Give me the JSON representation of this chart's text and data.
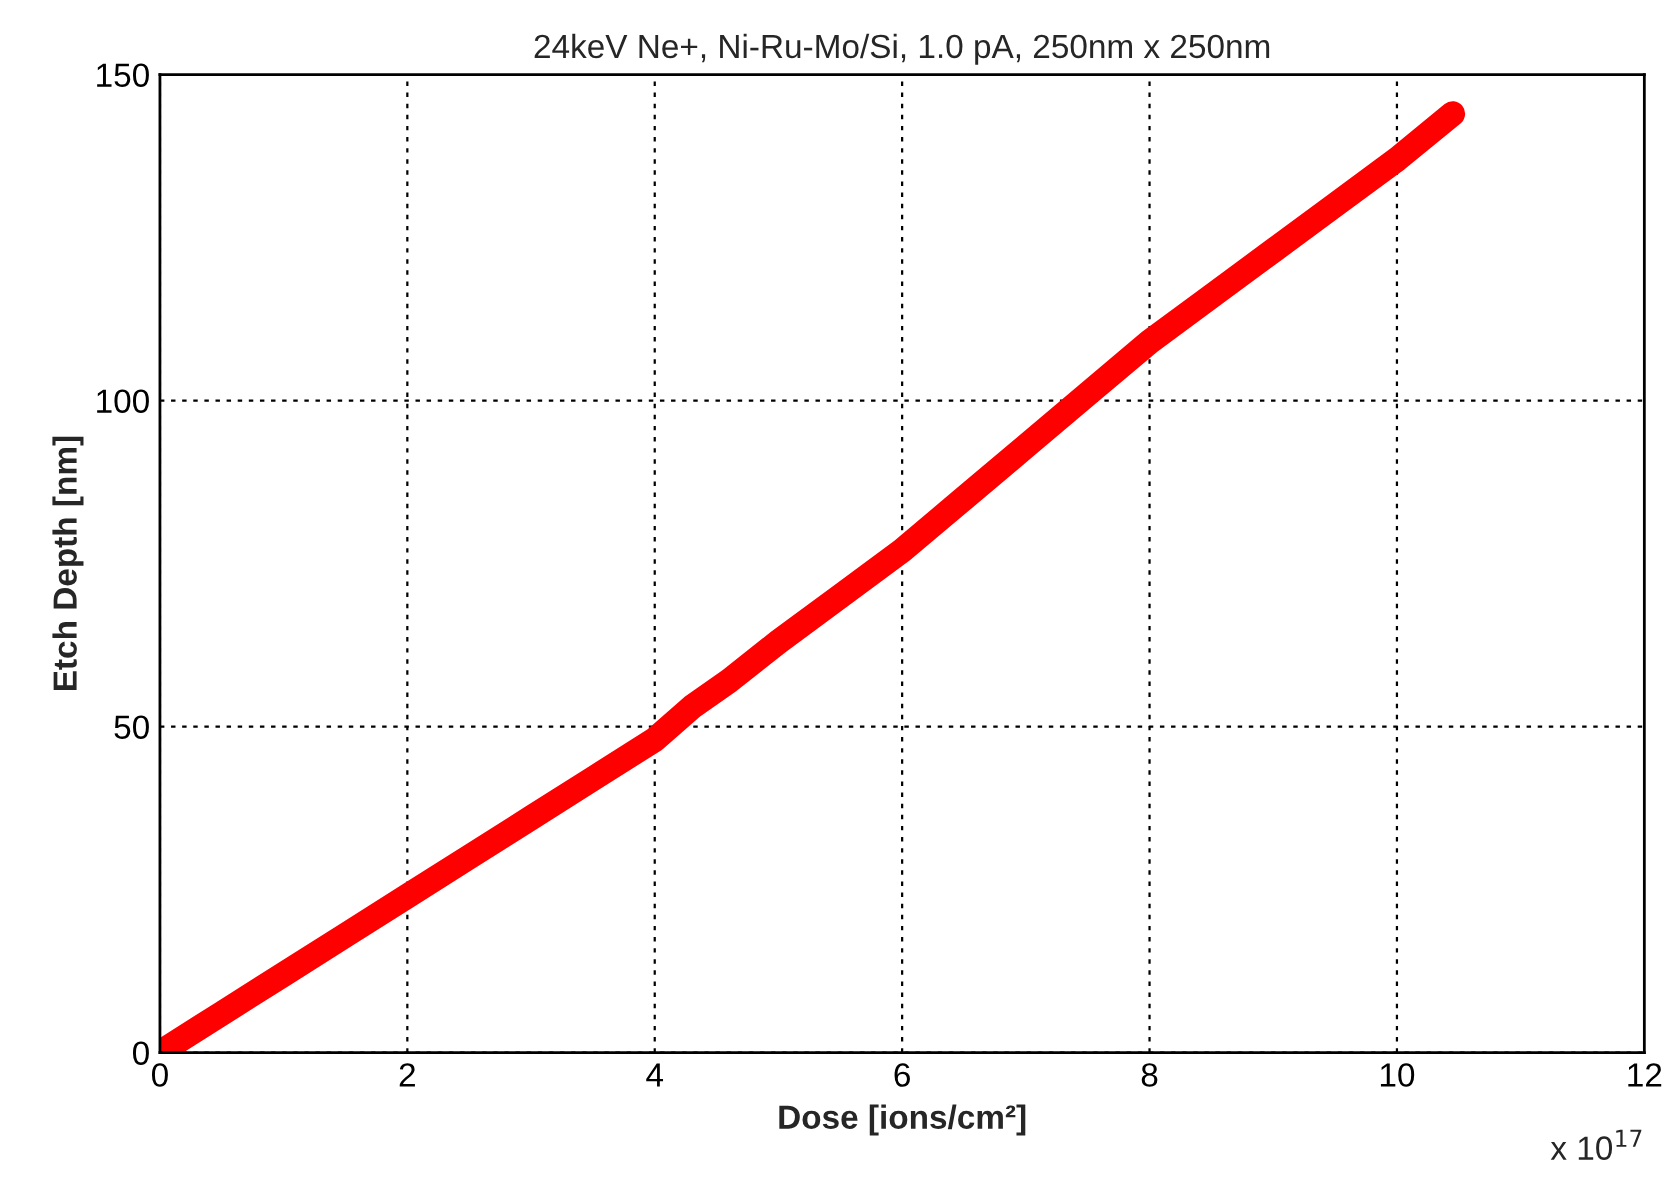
{
  "chart_data": {
    "type": "line",
    "title": "24keV Ne+, Ni-Ru-Mo/Si, 1.0 pA, 250nm x 250nm",
    "xlabel": "Dose [ions/cm²]",
    "ylabel": "Etch Depth [nm]",
    "annotations": [
      "x 10$^{17}$"
    ],
    "series": [
      {
        "color": "#ff0000",
        "x": [
          0,
          0.5,
          1,
          1.5,
          2,
          2.5,
          3,
          3.5,
          4,
          4.3,
          4.6,
          5,
          5.5,
          6,
          6.5,
          7,
          7.5,
          8,
          8.5,
          9,
          9.5,
          10,
          10.45
        ],
        "values": [
          0,
          6,
          12,
          18,
          24,
          30,
          36,
          42,
          48,
          53,
          57,
          63,
          70,
          77,
          85,
          93,
          101,
          109,
          116,
          123,
          130,
          137,
          144
        ]
      }
    ],
    "xlim": [
      0,
      12
    ],
    "xticks": [
      0,
      2,
      4,
      6,
      8,
      10,
      12
    ],
    "ylim": [
      0,
      150
    ],
    "yticks": [
      0,
      50,
      100,
      150
    ],
    "grid": true,
    "line_style": "solid"
  }
}
